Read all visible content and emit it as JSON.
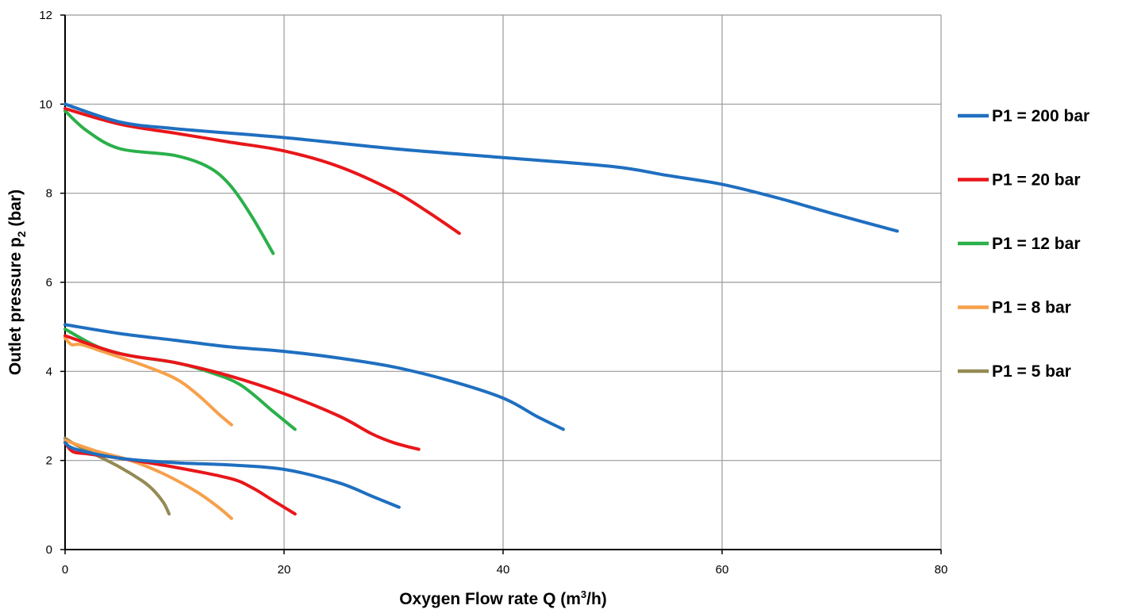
{
  "chart_data": {
    "type": "line",
    "xlabel_parts": [
      "Oxygen Flow rate Q (m",
      "3",
      "/h)"
    ],
    "ylabel_parts": [
      "Outlet pressure p",
      "2",
      " (bar)"
    ],
    "xlim": [
      0,
      80
    ],
    "ylim": [
      0,
      12
    ],
    "xticks": [
      "0",
      "20",
      "40",
      "60",
      "80"
    ],
    "yticks": [
      "0",
      "2",
      "4",
      "6",
      "8",
      "10",
      "12"
    ],
    "grid": true,
    "legend_position": "right",
    "series": [
      {
        "name": "P1 = 200 bar",
        "color": "#1f6fc0",
        "curves": [
          [
            [
              0,
              10.0
            ],
            [
              5,
              9.6
            ],
            [
              10,
              9.45
            ],
            [
              20,
              9.25
            ],
            [
              30,
              9.0
            ],
            [
              40,
              8.8
            ],
            [
              50,
              8.6
            ],
            [
              55,
              8.4
            ],
            [
              60,
              8.2
            ],
            [
              65,
              7.9
            ],
            [
              70,
              7.55
            ],
            [
              76,
              7.15
            ]
          ],
          [
            [
              0,
              5.05
            ],
            [
              5,
              4.85
            ],
            [
              10,
              4.7
            ],
            [
              15,
              4.55
            ],
            [
              20,
              4.45
            ],
            [
              25,
              4.3
            ],
            [
              30,
              4.1
            ],
            [
              35,
              3.8
            ],
            [
              40,
              3.4
            ],
            [
              43,
              3.0
            ],
            [
              45.5,
              2.7
            ]
          ],
          [
            [
              0,
              2.4
            ],
            [
              1,
              2.25
            ],
            [
              5,
              2.05
            ],
            [
              10,
              1.95
            ],
            [
              15,
              1.9
            ],
            [
              20,
              1.8
            ],
            [
              25,
              1.5
            ],
            [
              28,
              1.2
            ],
            [
              30.5,
              0.95
            ]
          ]
        ]
      },
      {
        "name": "P1 = 20 bar",
        "color": "#e8161a",
        "curves": [
          [
            [
              0,
              9.9
            ],
            [
              5,
              9.55
            ],
            [
              10,
              9.35
            ],
            [
              15,
              9.15
            ],
            [
              20,
              8.95
            ],
            [
              25,
              8.6
            ],
            [
              30,
              8.05
            ],
            [
              33,
              7.6
            ],
            [
              36,
              7.1
            ]
          ],
          [
            [
              0,
              4.8
            ],
            [
              5,
              4.4
            ],
            [
              10,
              4.2
            ],
            [
              15,
              3.9
            ],
            [
              20,
              3.5
            ],
            [
              25,
              3.0
            ],
            [
              28,
              2.6
            ],
            [
              30,
              2.4
            ],
            [
              32.3,
              2.25
            ]
          ],
          [
            [
              0,
              2.4
            ],
            [
              0.7,
              2.2
            ],
            [
              2,
              2.15
            ],
            [
              5,
              2.05
            ],
            [
              10,
              1.85
            ],
            [
              15,
              1.6
            ],
            [
              17,
              1.4
            ],
            [
              19,
              1.1
            ],
            [
              21,
              0.8
            ]
          ]
        ]
      },
      {
        "name": "P1 = 12 bar",
        "color": "#2ab04a",
        "curves": [
          [
            [
              0,
              9.85
            ],
            [
              2,
              9.4
            ],
            [
              5,
              9.0
            ],
            [
              10,
              8.85
            ],
            [
              13,
              8.6
            ],
            [
              15,
              8.2
            ],
            [
              17,
              7.5
            ],
            [
              19,
              6.65
            ]
          ],
          [
            [
              0,
              4.95
            ],
            [
              3,
              4.55
            ],
            [
              6,
              4.35
            ],
            [
              10,
              4.2
            ],
            [
              13,
              4.0
            ],
            [
              16,
              3.7
            ],
            [
              19,
              3.1
            ],
            [
              21,
              2.7
            ]
          ]
        ]
      },
      {
        "name": "P1 = 8 bar",
        "color": "#f7a04a",
        "curves": [
          [
            [
              0,
              4.75
            ],
            [
              0.6,
              4.6
            ],
            [
              1.5,
              4.6
            ],
            [
              4,
              4.4
            ],
            [
              7,
              4.15
            ],
            [
              10,
              3.85
            ],
            [
              12,
              3.5
            ],
            [
              14,
              3.05
            ],
            [
              15.2,
              2.8
            ]
          ],
          [
            [
              0,
              2.45
            ],
            [
              3,
              2.2
            ],
            [
              6,
              2.0
            ],
            [
              9,
              1.7
            ],
            [
              12,
              1.3
            ],
            [
              14,
              0.95
            ],
            [
              15.2,
              0.7
            ]
          ]
        ]
      },
      {
        "name": "P1 = 5 bar",
        "color": "#948a54",
        "curves": [
          [
            [
              0,
              2.5
            ],
            [
              1,
              2.35
            ],
            [
              3,
              2.1
            ],
            [
              5,
              1.85
            ],
            [
              7,
              1.55
            ],
            [
              8,
              1.35
            ],
            [
              9,
              1.05
            ],
            [
              9.5,
              0.8
            ]
          ]
        ]
      }
    ]
  }
}
